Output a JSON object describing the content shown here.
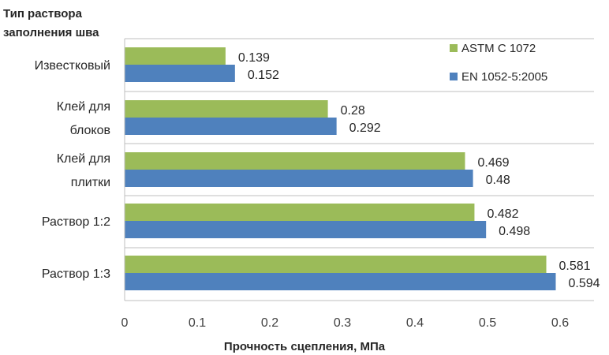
{
  "chart_data": {
    "type": "bar",
    "orientation": "horizontal",
    "title": "",
    "ylabel": "Тип раствора заполнения шва",
    "ylabel_lines": [
      "Тип раствора",
      "заполнения шва"
    ],
    "xlabel": "Прочность сцепления, МПа",
    "xlim": [
      0,
      0.6
    ],
    "xticks": [
      0,
      0.1,
      0.2,
      0.3,
      0.4,
      0.5,
      0.6
    ],
    "xtick_labels": [
      "0",
      "0.1",
      "0.2",
      "0.3",
      "0.4",
      "0.5",
      "0.6"
    ],
    "grid": true,
    "legend_position": "top-right",
    "categories": [
      [
        "Известковый"
      ],
      [
        "Клей для",
        "блоков"
      ],
      [
        "Клей для",
        "плитки"
      ],
      [
        "Раствор 1:2"
      ],
      [
        "Раствор 1:3"
      ]
    ],
    "series": [
      {
        "name": "ASTM C 1072",
        "color": "#9bbb59",
        "values": [
          0.139,
          0.28,
          0.469,
          0.482,
          0.581
        ],
        "labels": [
          "0.139",
          "0.28",
          "0.469",
          "0.482",
          "0.581"
        ]
      },
      {
        "name": "EN 1052-5:2005",
        "color": "#4f81bd",
        "values": [
          0.152,
          0.292,
          0.48,
          0.498,
          0.594
        ],
        "labels": [
          "0.152",
          "0.292",
          "0.48",
          "0.498",
          "0.594"
        ]
      }
    ]
  }
}
